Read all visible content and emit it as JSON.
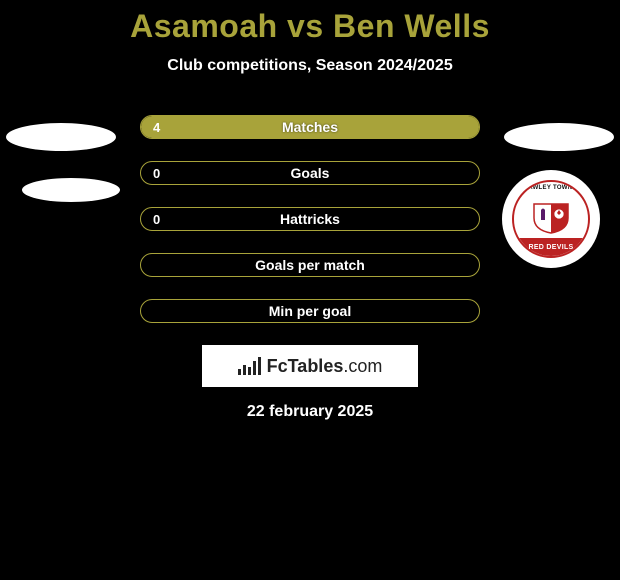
{
  "title": "Asamoah vs Ben Wells",
  "subtitle": "Club competitions, Season 2024/2025",
  "date": "22 february 2025",
  "colors": {
    "background": "#000000",
    "accent": "#a8a33a",
    "text_light": "#ffffff",
    "badge_red": "#bb2222"
  },
  "stats": [
    {
      "label": "Matches",
      "left_value": "4",
      "right_value": "",
      "left_fill_pct": 100,
      "right_fill_pct": 0
    },
    {
      "label": "Goals",
      "left_value": "0",
      "right_value": "",
      "left_fill_pct": 0,
      "right_fill_pct": 0
    },
    {
      "label": "Hattricks",
      "left_value": "0",
      "right_value": "",
      "left_fill_pct": 0,
      "right_fill_pct": 0
    },
    {
      "label": "Goals per match",
      "left_value": "",
      "right_value": "",
      "left_fill_pct": 0,
      "right_fill_pct": 0
    },
    {
      "label": "Min per goal",
      "left_value": "",
      "right_value": "",
      "left_fill_pct": 0,
      "right_fill_pct": 0
    }
  ],
  "branding": "FcTables.com",
  "badge": {
    "top_text": "CRAWLEY TOWN FC",
    "banner_text": "RED DEVILS"
  }
}
